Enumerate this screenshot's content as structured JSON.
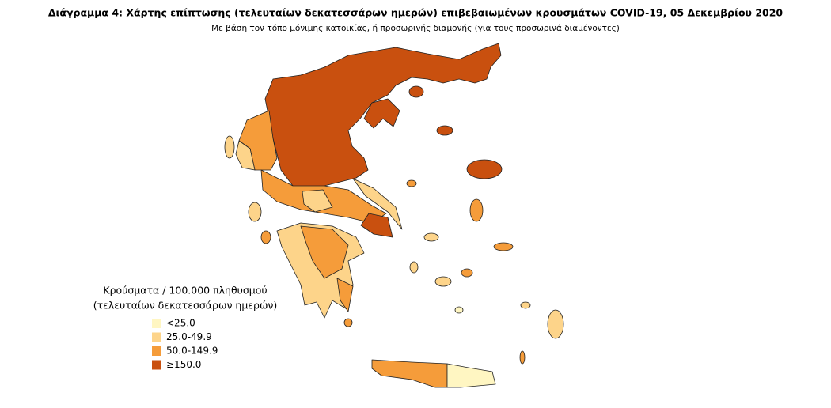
{
  "title": "Διάγραμμα 4: Χάρτης επίπτωσης (τελευταίων δεκατεσσάρων ημερών) επιβεβαιωμένων κρουσμάτων COVID-19, 05 Δεκεμβρίου 2020",
  "subtitle": "Με βάση τον τόπο μόνιμης κατοικίας, ή προσωρινής διαμονής (για τους προσωρινά διαμένοντες)",
  "legend": {
    "title": [
      "Κρούσματα / 100.000 πληθυσμού",
      "(τελευταίων δεκατεσσάρων ημερών)"
    ],
    "items": [
      {
        "label": "<25.0",
        "color": "#fff6c2"
      },
      {
        "label": "25.0-49.9",
        "color": "#fdd48a"
      },
      {
        "label": "50.0-149.9",
        "color": "#f59c3a"
      },
      {
        "label": "≥150.0",
        "color": "#c9500f"
      }
    ]
  }
}
